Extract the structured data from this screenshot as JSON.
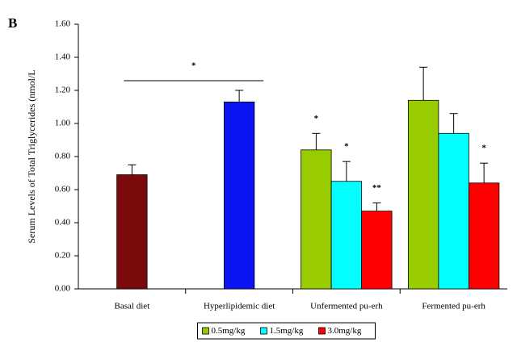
{
  "chart_data": {
    "type": "bar",
    "panel_label": "B",
    "y_label": "Serum Levels of Total Triglycerides (nmol/L",
    "categories": [
      "Basal diet",
      "Hyperlipidemic diet",
      "Unfermented pu-erh",
      "Fermented pu-erh"
    ],
    "series": [
      {
        "color": "#7b0a0a",
        "values": [
          0.69,
          null,
          null,
          null
        ],
        "errors": [
          0.06,
          null,
          null,
          null
        ]
      },
      {
        "color": "#0a14f0",
        "values": [
          null,
          1.13,
          null,
          null
        ],
        "errors": [
          null,
          0.07,
          null,
          null
        ]
      },
      {
        "name": "0.5mg/kg",
        "color": "#99cc00",
        "values": [
          null,
          null,
          0.84,
          1.14
        ],
        "errors": [
          null,
          null,
          0.1,
          0.2
        ],
        "significance": [
          null,
          null,
          "*",
          null
        ]
      },
      {
        "name": "1.5mg/kg",
        "color": "#00ffff",
        "values": [
          null,
          null,
          0.65,
          0.94
        ],
        "errors": [
          null,
          null,
          0.12,
          0.12
        ],
        "significance": [
          null,
          null,
          "*",
          null
        ]
      },
      {
        "name": "3.0mg/kg",
        "color": "#ff0000",
        "values": [
          null,
          null,
          0.47,
          0.64
        ],
        "errors": [
          null,
          null,
          0.05,
          0.12
        ],
        "significance": [
          null,
          null,
          "**",
          "*"
        ]
      }
    ],
    "bracket_label": "*",
    "ylim": [
      0,
      1.6
    ],
    "yticks": [
      {
        "value": 0,
        "label": "0.00"
      },
      {
        "value": 0.2,
        "label": "0.20"
      },
      {
        "value": 0.4,
        "label": "0.40"
      },
      {
        "value": 0.6,
        "label": "0.60"
      },
      {
        "value": 0.8,
        "label": "0.80"
      },
      {
        "value": 1.0,
        "label": "1.00"
      },
      {
        "value": 1.2,
        "label": "1.20"
      },
      {
        "value": 1.4,
        "label": "1.40"
      },
      {
        "value": 1.6,
        "label": "1.60"
      }
    ],
    "legend": "bottom"
  }
}
